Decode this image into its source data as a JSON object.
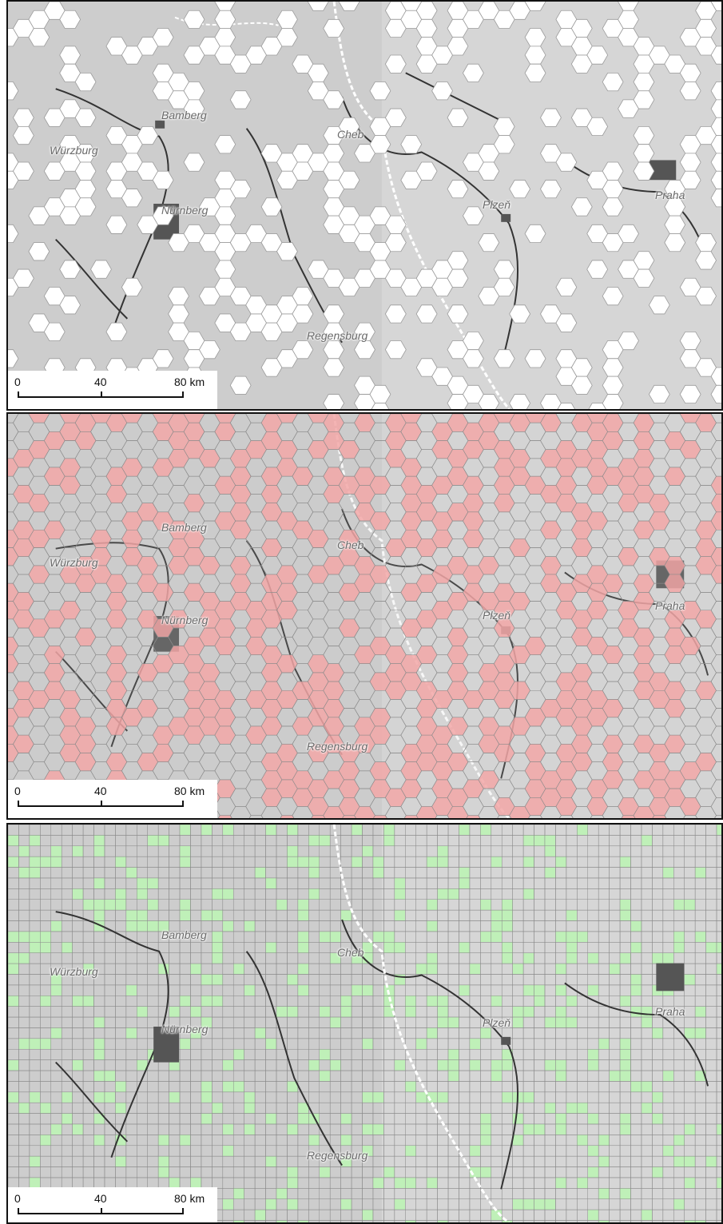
{
  "panels": [
    {
      "id": "hex-white",
      "fill": "#ffffff",
      "stroke": "#9a9a9a",
      "grid": "hexagon"
    },
    {
      "id": "hex-red",
      "fill": "#f2a7a7",
      "stroke": "#8a8a8a",
      "grid": "hexagon"
    },
    {
      "id": "square-green",
      "fill": "#bff0b8",
      "stroke": "#8a8a8a",
      "grid": "square"
    }
  ],
  "cities": {
    "bamberg": "Bamberg",
    "wurzburg": "Würzburg",
    "cheb": "Cheb",
    "nurnberg": "Nürnberg",
    "plzen": "Plzeň",
    "praha": "Praha",
    "regensburg": "Regensburg"
  },
  "scale": {
    "zero": "0",
    "mid": "40",
    "end": "80 km"
  }
}
